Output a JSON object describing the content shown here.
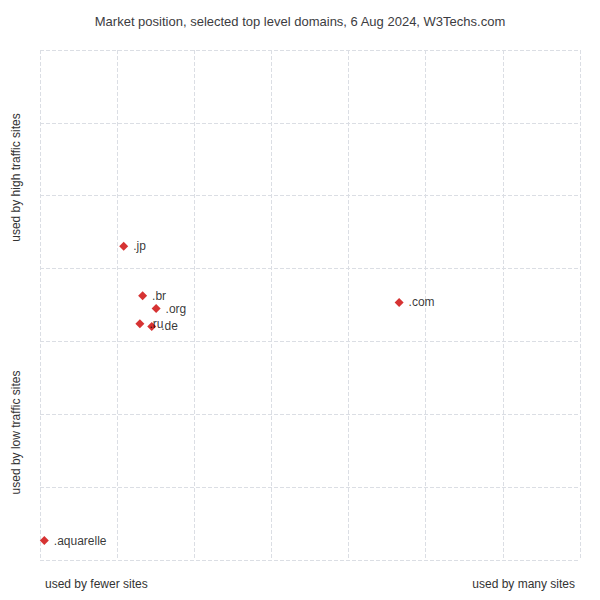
{
  "chart_data": {
    "type": "scatter",
    "title": "Market position, selected top level domains, 6 Aug 2024, W3Techs.com",
    "xlabel_left": "used by fewer sites",
    "xlabel_right": "used by many sites",
    "ylabel_top": "used by high traffic sites",
    "ylabel_bottom": "used by low traffic sites",
    "labels": [
      ".jp",
      ".br",
      ".org",
      ".ru",
      ".de",
      ".com",
      ".aquarelle"
    ],
    "x": [
      0.155,
      0.19,
      0.215,
      0.185,
      0.207,
      0.665,
      0.008
    ],
    "values": [
      0.615,
      0.518,
      0.493,
      0.463,
      0.458,
      0.505,
      0.038
    ],
    "color": "#cc0000",
    "marker": "diamond",
    "xlim": [
      0,
      1
    ],
    "ylim": [
      0,
      1
    ],
    "xticks": [
      0,
      0.14285714285714285,
      0.2857142857142857,
      0.42857142857142855,
      0.5714285714285714,
      0.7142857142857142,
      0.8571428571428571,
      1
    ],
    "yticks": [
      0,
      0.14285714285714285,
      0.2857142857142857,
      0.42857142857142855,
      0.5714285714285714,
      0.7142857142857142,
      0.8571428571428571,
      1
    ],
    "grid": true,
    "tick_labels": false
  }
}
